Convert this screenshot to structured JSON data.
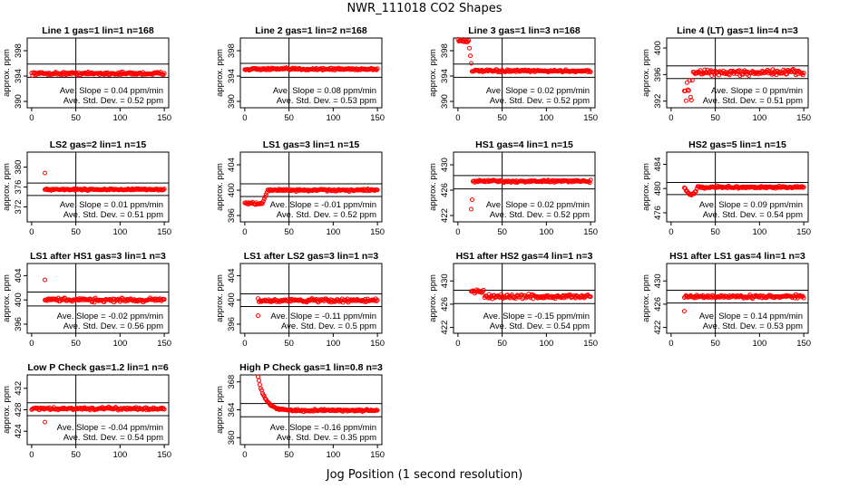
{
  "title": "NWR_111018  CO2 Shapes",
  "xlabel": "Jog Position (1 second resolution)",
  "ylabel": "approx. ppm",
  "slope_prefix": "Ave. Slope =",
  "slope_unit": "ppm/min",
  "std_prefix": "Ave. Std. Dev. =",
  "std_unit": "ppm",
  "marker_color": "#ff0000",
  "chart_data": [
    {
      "type": "scatter",
      "title": "Line 1 gas=1 lin=1 n=168",
      "ylim": [
        389,
        400
      ],
      "yticks": [
        390,
        394,
        398
      ],
      "xlim": [
        -5,
        155
      ],
      "xticks": [
        0,
        50,
        100,
        150
      ],
      "vline": 50,
      "hlines": [
        395.9,
        393.8
      ],
      "x_start": 0,
      "x_end": 150,
      "plateau": 394.4,
      "noise": 0.25,
      "slope": "0.04",
      "std": "0.52",
      "shape": "flat"
    },
    {
      "type": "scatter",
      "title": "Line 2 gas=1 lin=2 n=168",
      "ylim": [
        389,
        400
      ],
      "yticks": [
        390,
        394,
        398
      ],
      "xlim": [
        -5,
        155
      ],
      "xticks": [
        0,
        50,
        100,
        150
      ],
      "vline": 50,
      "hlines": [
        396.0,
        393.8
      ],
      "x_start": 0,
      "x_end": 150,
      "plateau": 395.1,
      "noise": 0.2,
      "slope": "0.08",
      "std": "0.53",
      "shape": "flat"
    },
    {
      "type": "scatter",
      "title": "Line 3 gas=1 lin=3 n=168",
      "ylim": [
        389,
        400
      ],
      "yticks": [
        390,
        394,
        398
      ],
      "xlim": [
        -5,
        155
      ],
      "xticks": [
        0,
        50,
        100,
        150
      ],
      "vline": 50,
      "hlines": [
        395.9,
        393.8
      ],
      "x_start": 0,
      "x_end": 150,
      "plateau": 394.8,
      "noise": 0.2,
      "slope": "0.02",
      "std": "0.52",
      "shape": "spike_high"
    },
    {
      "type": "scatter",
      "title": "Line 4 (LT) gas=1 lin=4 n=3",
      "ylim": [
        391,
        401.5
      ],
      "yticks": [
        392,
        396,
        400
      ],
      "xlim": [
        -5,
        155
      ],
      "xticks": [
        0,
        50,
        100,
        150
      ],
      "vline": 50,
      "hlines": [
        397.3,
        395.4
      ],
      "x_start": 15,
      "x_end": 150,
      "plateau": 396.3,
      "noise": 0.45,
      "slope": "0",
      "std": "0.51",
      "shape": "noisy_start"
    },
    {
      "type": "scatter",
      "title": "LS2 gas=2 lin=1 n=15",
      "ylim": [
        369,
        383
      ],
      "yticks": [
        372,
        376,
        380
      ],
      "xlim": [
        -5,
        155
      ],
      "xticks": [
        0,
        50,
        100,
        150
      ],
      "vline": 50,
      "hlines": [
        376.8,
        374.3
      ],
      "x_start": 15,
      "x_end": 150,
      "plateau": 375.5,
      "noise": 0.2,
      "slope": "0.01",
      "std": "0.51",
      "shape": "outlier_high"
    },
    {
      "type": "scatter",
      "title": "LS1 gas=3 lin=1 n=15",
      "ylim": [
        395,
        406
      ],
      "yticks": [
        396,
        400,
        404
      ],
      "xlim": [
        -5,
        155
      ],
      "xticks": [
        0,
        50,
        100,
        150
      ],
      "vline": 50,
      "hlines": [
        401.0,
        399.0
      ],
      "x_start": 0,
      "x_end": 150,
      "plateau": 400.0,
      "noise": 0.2,
      "slope": "-0.01",
      "std": "0.52",
      "shape": "step_up"
    },
    {
      "type": "scatter",
      "title": "HS1 gas=4 lin=1 n=15",
      "ylim": [
        421,
        432
      ],
      "yticks": [
        422,
        426,
        430
      ],
      "xlim": [
        -5,
        155
      ],
      "xticks": [
        0,
        50,
        100,
        150
      ],
      "vline": 50,
      "hlines": [
        428.3,
        426.2
      ],
      "x_start": 15,
      "x_end": 150,
      "plateau": 427.4,
      "noise": 0.2,
      "slope": "0.02",
      "std": "0.52",
      "shape": "low_start"
    },
    {
      "type": "scatter",
      "title": "HS2 gas=5 lin=1 n=15",
      "ylim": [
        474.5,
        486
      ],
      "yticks": [
        476,
        480,
        484
      ],
      "xlim": [
        -5,
        155
      ],
      "xticks": [
        0,
        50,
        100,
        150
      ],
      "vline": 50,
      "hlines": [
        481.0,
        479.0
      ],
      "x_start": 15,
      "x_end": 150,
      "plateau": 480.2,
      "noise": 0.2,
      "slope": "0.09",
      "std": "0.54",
      "shape": "dip"
    },
    {
      "type": "scatter",
      "title": "LS1 after HS1 gas=3 lin=1 n=3",
      "ylim": [
        394.5,
        406
      ],
      "yticks": [
        396,
        400,
        404
      ],
      "xlim": [
        -5,
        155
      ],
      "xticks": [
        0,
        50,
        100,
        150
      ],
      "vline": 50,
      "hlines": [
        401.3,
        399.0
      ],
      "x_start": 15,
      "x_end": 150,
      "plateau": 400.0,
      "noise": 0.35,
      "slope": "-0.02",
      "std": "0.56",
      "shape": "outlier_high"
    },
    {
      "type": "scatter",
      "title": "LS1 after LS2 gas=3 lin=1 n=3",
      "ylim": [
        394.5,
        406
      ],
      "yticks": [
        396,
        400,
        404
      ],
      "xlim": [
        -5,
        155
      ],
      "xticks": [
        0,
        50,
        100,
        150
      ],
      "vline": 50,
      "hlines": [
        401.0,
        398.9
      ],
      "x_start": 15,
      "x_end": 150,
      "plateau": 399.9,
      "noise": 0.35,
      "slope": "-0.11",
      "std": "0.5",
      "shape": "outlier_low"
    },
    {
      "type": "scatter",
      "title": "HS1 after HS2 gas=4 lin=1 n=3",
      "ylim": [
        421,
        433
      ],
      "yticks": [
        422,
        426,
        430
      ],
      "xlim": [
        -5,
        155
      ],
      "xticks": [
        0,
        50,
        100,
        150
      ],
      "vline": 50,
      "hlines": [
        428.4,
        426.1
      ],
      "x_start": 15,
      "x_end": 150,
      "plateau": 427.3,
      "noise": 0.4,
      "slope": "-0.15",
      "std": "0.54",
      "shape": "high_start"
    },
    {
      "type": "scatter",
      "title": "HS1 after LS1 gas=4 lin=1 n=3",
      "ylim": [
        421,
        433
      ],
      "yticks": [
        422,
        426,
        430
      ],
      "xlim": [
        -5,
        155
      ],
      "xticks": [
        0,
        50,
        100,
        150
      ],
      "vline": 50,
      "hlines": [
        428.4,
        426.2
      ],
      "x_start": 15,
      "x_end": 150,
      "plateau": 427.3,
      "noise": 0.3,
      "slope": "0.14",
      "std": "0.53",
      "shape": "outlier_low"
    },
    {
      "type": "scatter",
      "title": "Low P Check gas=1.2 lin=1 n=6",
      "ylim": [
        421.5,
        434.5
      ],
      "yticks": [
        424,
        428,
        432
      ],
      "xlim": [
        -5,
        155
      ],
      "xticks": [
        0,
        50,
        100,
        150
      ],
      "vline": 50,
      "hlines": [
        429.3,
        426.9
      ],
      "x_start": 0,
      "x_end": 150,
      "plateau": 428.2,
      "noise": 0.25,
      "slope": "-0.04",
      "std": "0.54",
      "shape": "outlier_low"
    },
    {
      "type": "scatter",
      "title": "High P Check gas=1 lin=0.8 n=3",
      "ylim": [
        359,
        369
      ],
      "yticks": [
        360,
        364,
        368
      ],
      "xlim": [
        -5,
        155
      ],
      "xticks": [
        0,
        50,
        100,
        150
      ],
      "vline": 50,
      "hlines": [
        364.9,
        363.0
      ],
      "x_start": 15,
      "x_end": 150,
      "plateau": 363.9,
      "noise": 0.15,
      "slope": "-0.16",
      "std": "0.35",
      "shape": "decay"
    }
  ]
}
